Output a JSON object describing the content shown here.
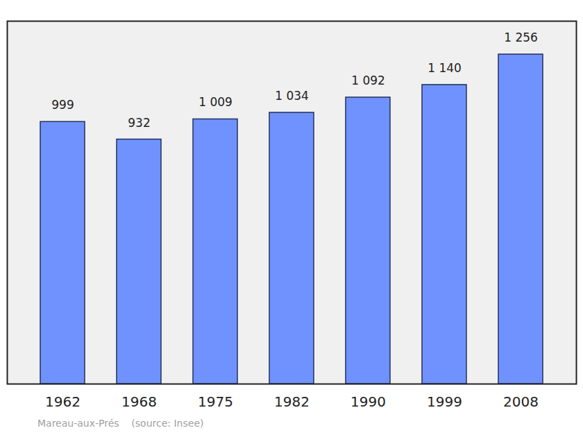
{
  "chart_data": {
    "type": "bar",
    "categories": [
      "1962",
      "1968",
      "1975",
      "1982",
      "1990",
      "1999",
      "2008"
    ],
    "values": [
      999,
      932,
      1009,
      1034,
      1092,
      1140,
      1256
    ],
    "value_labels": [
      "999",
      "932",
      "1 009",
      "1 034",
      "1 092",
      "1 140",
      "1 256"
    ],
    "data_labels": true,
    "color": "#7092ff",
    "ylim": [
      0,
      1383
    ],
    "tick_labels": "x",
    "caption": "Mareau-aux-Prés    (source: Insee)"
  }
}
